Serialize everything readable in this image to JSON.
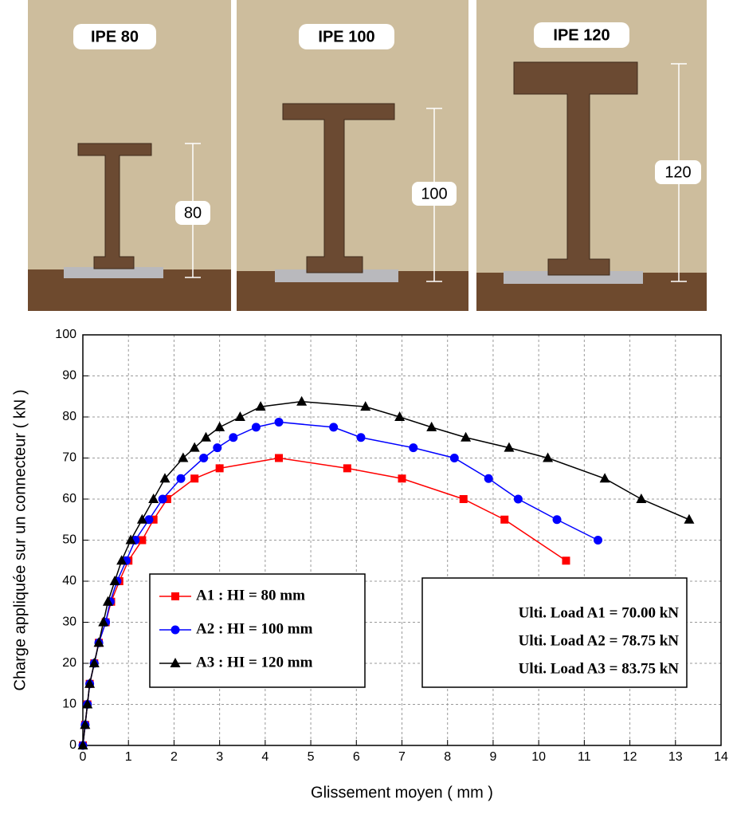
{
  "photos": [
    {
      "label": "IPE 80",
      "dimension": "80"
    },
    {
      "label": "IPE 100",
      "dimension": "100"
    },
    {
      "label": "IPE 120",
      "dimension": "120"
    }
  ],
  "chart_data": {
    "type": "line",
    "x_label": "Glissement moyen ( mm )",
    "y_label": "Charge appliquée sur un connecteur ( kN )",
    "xlim": [
      0,
      14
    ],
    "xticks": [
      0,
      1,
      2,
      3,
      4,
      5,
      6,
      7,
      8,
      9,
      10,
      11,
      12,
      13,
      14
    ],
    "ylim": [
      0,
      100
    ],
    "yticks": [
      0,
      10,
      20,
      30,
      40,
      50,
      60,
      70,
      80,
      90,
      100
    ],
    "grid": true,
    "series": [
      {
        "name": "A1 : HI = 80 mm",
        "color": "#ff0000",
        "marker": "square",
        "x": [
          0,
          0.05,
          0.1,
          0.15,
          0.25,
          0.35,
          0.5,
          0.62,
          0.8,
          1.0,
          1.3,
          1.55,
          1.85,
          2.45,
          3.0,
          4.3,
          5.8,
          7.0,
          8.35,
          9.25,
          10.6
        ],
        "values": [
          0,
          5,
          10,
          15,
          20,
          25,
          30,
          35,
          40,
          45,
          50,
          55,
          60,
          65,
          67.5,
          70,
          67.5,
          65,
          60,
          55,
          45
        ]
      },
      {
        "name": "A2 : HI = 100 mm",
        "color": "#0000ff",
        "marker": "circle",
        "x": [
          0,
          0.05,
          0.1,
          0.15,
          0.25,
          0.35,
          0.5,
          0.6,
          0.75,
          0.95,
          1.15,
          1.45,
          1.75,
          2.15,
          2.65,
          2.95,
          3.3,
          3.8,
          4.3,
          5.5,
          6.1,
          7.25,
          8.15,
          8.9,
          9.55,
          10.4,
          11.3
        ],
        "values": [
          0,
          5,
          10,
          15,
          20,
          25,
          30,
          35,
          40,
          45,
          50,
          55,
          60,
          65,
          70,
          72.5,
          75,
          77.5,
          78.75,
          77.5,
          75,
          72.5,
          70,
          65,
          60,
          55,
          50
        ]
      },
      {
        "name": "A3 : HI = 120 mm",
        "color": "#000000",
        "marker": "triangle",
        "x": [
          0,
          0.05,
          0.1,
          0.15,
          0.25,
          0.35,
          0.45,
          0.55,
          0.7,
          0.85,
          1.05,
          1.3,
          1.55,
          1.8,
          2.2,
          2.45,
          2.7,
          3.0,
          3.45,
          3.9,
          4.8,
          6.2,
          6.95,
          7.65,
          8.4,
          9.35,
          10.2,
          11.45,
          12.25,
          13.3
        ],
        "values": [
          0,
          5,
          10,
          15,
          20,
          25,
          30,
          35,
          40,
          45,
          50,
          55,
          60,
          65,
          70,
          72.5,
          75,
          77.5,
          80,
          82.5,
          83.75,
          82.5,
          80,
          77.5,
          75,
          72.5,
          70,
          65,
          60,
          55
        ]
      }
    ],
    "annotations": [
      "Ulti. Load  A1 = 70.00 kN",
      "Ulti. Load  A2 = 78.75 kN",
      "Ulti. Load  A3 = 83.75 kN"
    ]
  }
}
